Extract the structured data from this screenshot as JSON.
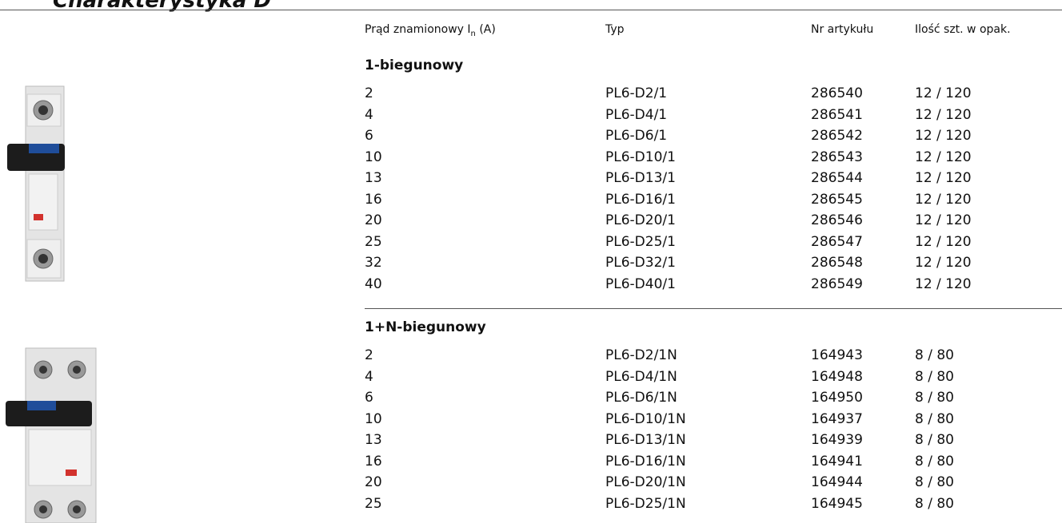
{
  "header": {
    "title": "Charakterystyka D"
  },
  "table": {
    "columns": [
      {
        "text": "Prąd znamionowy I",
        "sub": "n",
        "suffix": "(A)"
      },
      "Typ",
      "Nr artykułu",
      "Ilość szt. w opak."
    ],
    "sections": [
      {
        "title": "1-biegunowy",
        "rows": [
          [
            "2",
            "PL6-D2/1",
            "286540",
            "12 / 120"
          ],
          [
            "4",
            "PL6-D4/1",
            "286541",
            "12 / 120"
          ],
          [
            "6",
            "PL6-D6/1",
            "286542",
            "12 / 120"
          ],
          [
            "10",
            "PL6-D10/1",
            "286543",
            "12 / 120"
          ],
          [
            "13",
            "PL6-D13/1",
            "286544",
            "12 / 120"
          ],
          [
            "16",
            "PL6-D16/1",
            "286545",
            "12 / 120"
          ],
          [
            "20",
            "PL6-D20/1",
            "286546",
            "12 / 120"
          ],
          [
            "25",
            "PL6-D25/1",
            "286547",
            "12 / 120"
          ],
          [
            "32",
            "PL6-D32/1",
            "286548",
            "12 / 120"
          ],
          [
            "40",
            "PL6-D40/1",
            "286549",
            "12 / 120"
          ]
        ]
      },
      {
        "title": "1+N-biegunowy",
        "rows": [
          [
            "2",
            "PL6-D2/1N",
            "164943",
            "8 / 80"
          ],
          [
            "4",
            "PL6-D4/1N",
            "164948",
            "8 / 80"
          ],
          [
            "6",
            "PL6-D6/1N",
            "164950",
            "8 / 80"
          ],
          [
            "10",
            "PL6-D10/1N",
            "164937",
            "8 / 80"
          ],
          [
            "13",
            "PL6-D13/1N",
            "164939",
            "8 / 80"
          ],
          [
            "16",
            "PL6-D16/1N",
            "164941",
            "8 / 80"
          ],
          [
            "20",
            "PL6-D20/1N",
            "164944",
            "8 / 80"
          ],
          [
            "25",
            "PL6-D25/1N",
            "164945",
            "8 / 80"
          ]
        ]
      }
    ]
  }
}
